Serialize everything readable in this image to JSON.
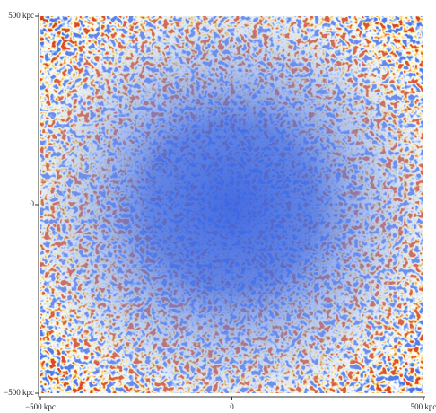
{
  "chart_data": {
    "type": "density",
    "xlim": [
      -500,
      500
    ],
    "ylim": [
      -500,
      500
    ],
    "xticks": [
      {
        "value": -500,
        "label": "−500 kpc"
      },
      0,
      {
        "value": 500,
        "label": "500 kpc"
      }
    ],
    "yticks": [
      {
        "value": -500,
        "label": "−500 kpc"
      },
      0,
      {
        "value": 500,
        "label": "500 kpc"
      }
    ]
  }
}
